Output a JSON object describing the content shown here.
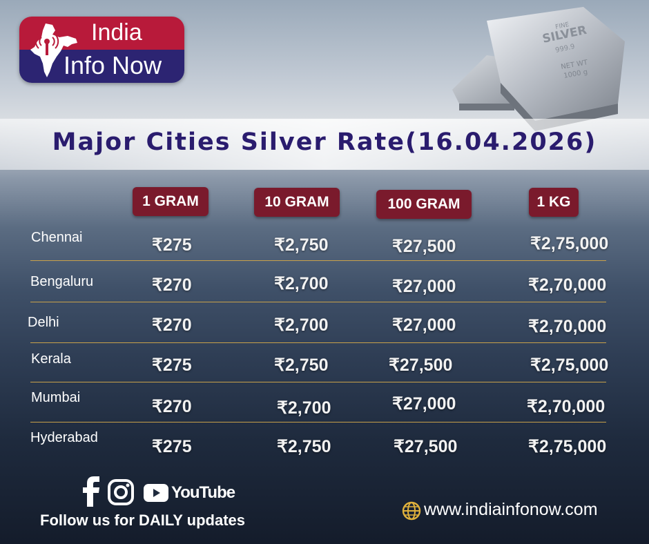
{
  "brand": {
    "line1": "India",
    "line2": "Info Now"
  },
  "title": "Major Cities Silver Rate(16.04.2026)",
  "columns": [
    "1 GRAM",
    "10 GRAM",
    "100 GRAM",
    "1 KG"
  ],
  "rows": [
    {
      "city": "Chennai",
      "values": [
        "₹275",
        "₹2,750",
        "₹27,500",
        "₹2,75,000"
      ]
    },
    {
      "city": "Bengaluru",
      "values": [
        "₹270",
        "₹2,700",
        "₹27,000",
        "₹2,70,000"
      ]
    },
    {
      "city": "Delhi",
      "values": [
        "₹270",
        "₹2,700",
        "₹27,000",
        "₹2,70,000"
      ]
    },
    {
      "city": "Kerala",
      "values": [
        "₹275",
        "₹2,750",
        "₹27,500",
        "₹2,75,000"
      ]
    },
    {
      "city": "Mumbai",
      "values": [
        "₹270",
        "₹2,700",
        "₹27,000",
        "₹2,70,000"
      ]
    },
    {
      "city": "Hyderabad",
      "values": [
        "₹275",
        "₹2,750",
        "₹27,500",
        "₹2,75,000"
      ]
    }
  ],
  "silver_bar": {
    "line1": "FINE",
    "line2": "SILVER",
    "line3": "999.9",
    "line4": "NET WT",
    "line5": "1000 g"
  },
  "social": {
    "icons": [
      "facebook-icon",
      "instagram-icon",
      "youtube-icon"
    ],
    "youtube_label": "YouTube"
  },
  "follow_text": "Follow  us for DAILY updates",
  "website": "www.indiainfonow.com",
  "colors": {
    "header_bg": "#7a1a2c",
    "title": "#2a1c6e",
    "divider": "#c9a24a"
  }
}
